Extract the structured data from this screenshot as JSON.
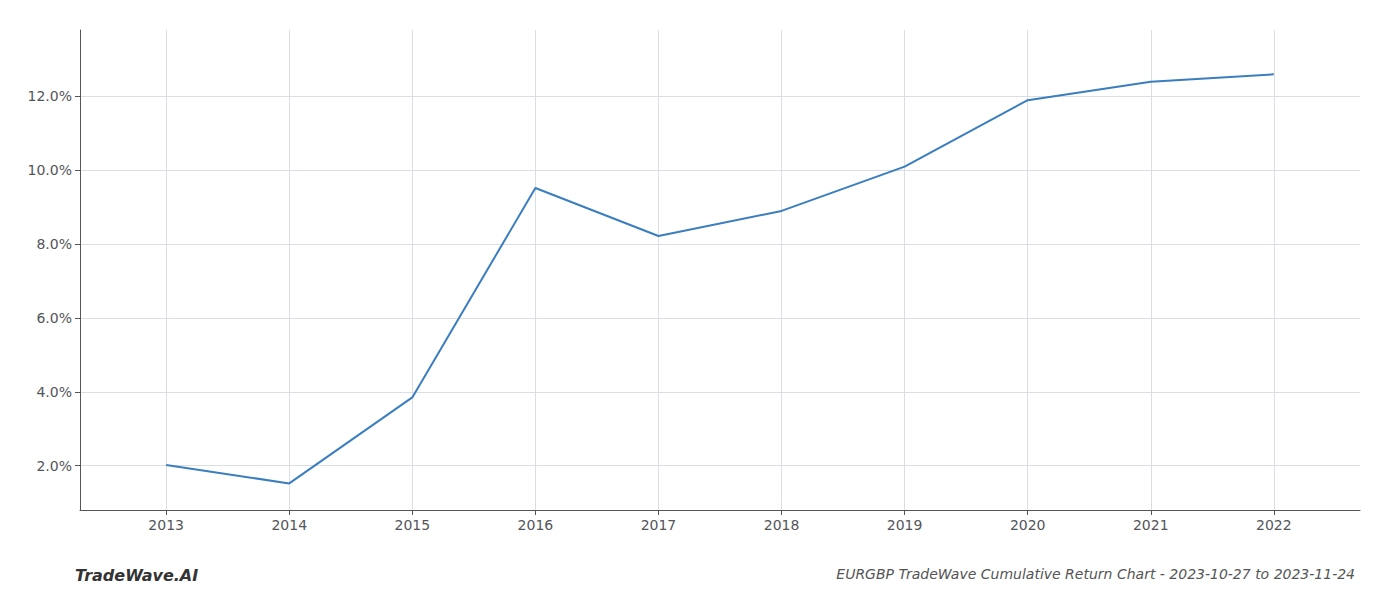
{
  "chart_data": {
    "type": "line",
    "title": "EURGBP TradeWave Cumulative Return Chart - 2023-10-27 to 2023-11-24",
    "annotations": [
      "TradeWave.AI"
    ],
    "x": [
      2013,
      2014,
      2015,
      2016,
      2017,
      2018,
      2019,
      2020,
      2021,
      2022
    ],
    "values": [
      2.02,
      1.52,
      3.85,
      9.52,
      8.22,
      8.9,
      10.1,
      11.9,
      12.4,
      12.6
    ],
    "color": "#3a7ebf",
    "xlim": [
      2012.3,
      2022.7
    ],
    "xticks": [
      2013,
      2014,
      2015,
      2016,
      2017,
      2018,
      2019,
      2020,
      2021,
      2022
    ],
    "ylim": [
      0.8,
      13.8
    ],
    "yticks": [
      {
        "value": 2.0,
        "label": "2.0%"
      },
      {
        "value": 4.0,
        "label": "4.0%"
      },
      {
        "value": 6.0,
        "label": "6.0%"
      },
      {
        "value": 8.0,
        "label": "8.0%"
      },
      {
        "value": 10.0,
        "label": "10.0%"
      },
      {
        "value": 12.0,
        "label": "12.0%"
      }
    ],
    "grid": true
  }
}
